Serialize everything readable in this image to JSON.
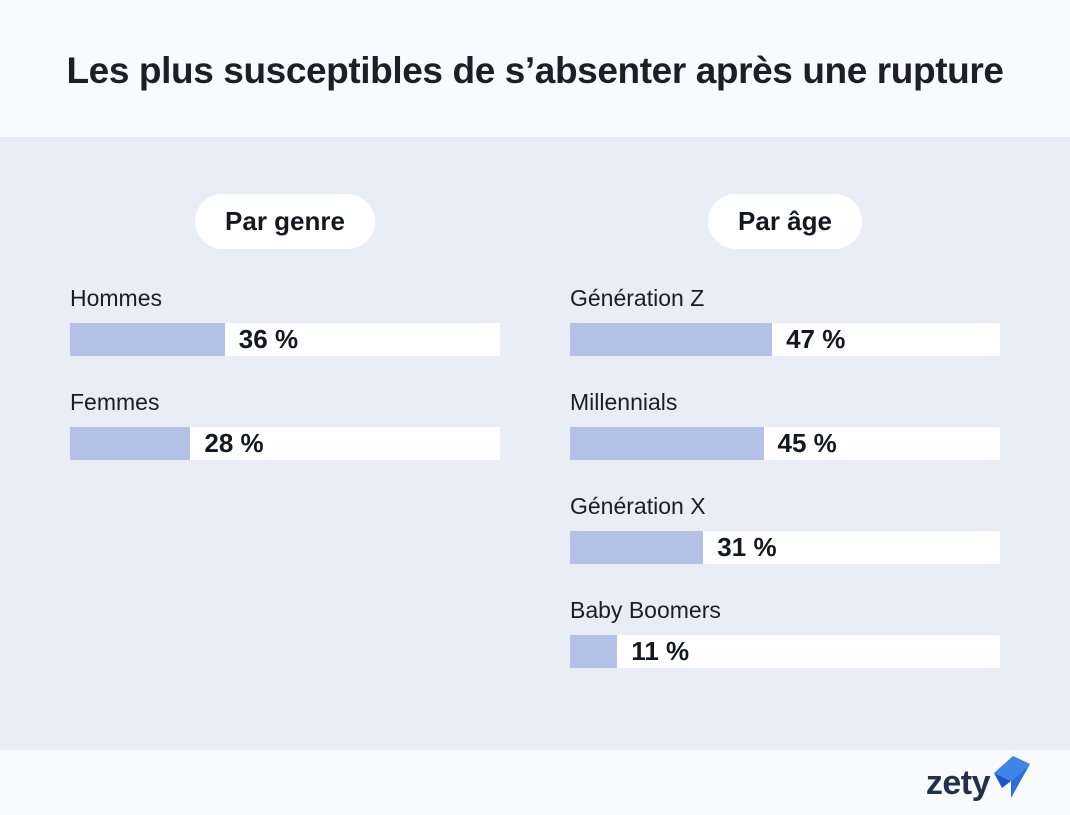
{
  "page": {
    "title": "Les plus susceptibles de s’absenter après une rupture"
  },
  "colors": {
    "header_bg": "#f9fafd",
    "main_bg": "#e9edf6",
    "bar_fill": "#b4c1e7",
    "bar_track": "#ffffff",
    "text": "#1a1d23",
    "logo_text_color": "#233049",
    "logo_blue_light": "#3f85e8",
    "logo_blue_medium": "#2a6fde",
    "logo_blue_dark": "#1d55c6"
  },
  "chart_data": [
    {
      "type": "bar",
      "orientation": "horizontal",
      "title": "Par genre",
      "categories": [
        "Hommes",
        "Femmes"
      ],
      "values": [
        36,
        28
      ],
      "value_labels": [
        "36 %",
        "28 %"
      ],
      "xlim": [
        0,
        100
      ],
      "grid": false,
      "legend": false
    },
    {
      "type": "bar",
      "orientation": "horizontal",
      "title": "Par âge",
      "categories": [
        "Génération Z",
        "Millennials",
        "Génération X",
        "Baby Boomers"
      ],
      "values": [
        47,
        45,
        31,
        11
      ],
      "value_labels": [
        "47 %",
        "45 %",
        "31 %",
        "11 %"
      ],
      "xlim": [
        0,
        100
      ],
      "grid": false,
      "legend": false
    }
  ],
  "footer": {
    "logo_text": "zety"
  }
}
